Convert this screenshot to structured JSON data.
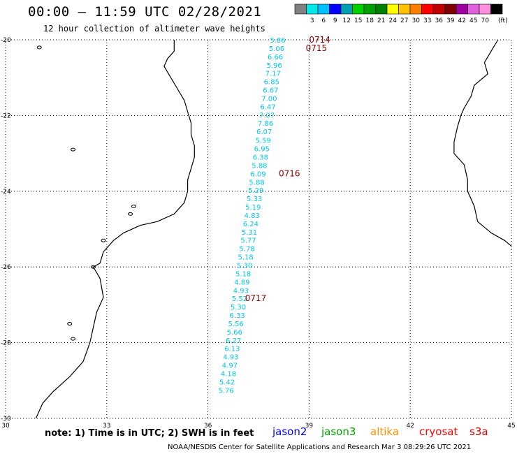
{
  "title": "00:00 – 11:59 UTC 02/28/2021",
  "subtitle": "12 hour collection of altimeter wave heights",
  "legend": {
    "unit": "(ft)",
    "swatches": [
      {
        "label": "",
        "color": "#808080"
      },
      {
        "label": "3",
        "color": "#00e8e8"
      },
      {
        "label": "6",
        "color": "#00c0ff"
      },
      {
        "label": "9",
        "color": "#0000ff"
      },
      {
        "label": "12",
        "color": "#00a0b0"
      },
      {
        "label": "15",
        "color": "#00d000"
      },
      {
        "label": "18",
        "color": "#00a000"
      },
      {
        "label": "21",
        "color": "#008000"
      },
      {
        "label": "24",
        "color": "#ffff00"
      },
      {
        "label": "27",
        "color": "#ffc000"
      },
      {
        "label": "30",
        "color": "#ff8000"
      },
      {
        "label": "33",
        "color": "#ff0000"
      },
      {
        "label": "36",
        "color": "#c00000"
      },
      {
        "label": "39",
        "color": "#800000"
      },
      {
        "label": "42",
        "color": "#a000a0"
      },
      {
        "label": "45",
        "color": "#e060e0"
      },
      {
        "label": "70",
        "color": "#ff90e0"
      },
      {
        "label": "",
        "color": "#000000"
      }
    ]
  },
  "map": {
    "lon_range": [
      30,
      45
    ],
    "lat_range": [
      -30,
      -20
    ],
    "lon_ticks": [
      "30",
      "33",
      "36",
      "39",
      "42",
      "45"
    ],
    "lat_ticks": [
      "-20",
      "-22",
      "-24",
      "-26",
      "-28",
      "-30"
    ],
    "grid": "dotted",
    "track_color": "#00c8e8",
    "time_label_color": "#8b0000"
  },
  "swh_track": [
    {
      "lat": -20.0,
      "lon": 38.3,
      "swh": "5.86"
    },
    {
      "lat": -20.22,
      "lon": 38.27,
      "swh": "5.06"
    },
    {
      "lat": -20.44,
      "lon": 38.23,
      "swh": "6.66"
    },
    {
      "lat": -20.66,
      "lon": 38.2,
      "swh": "5.96"
    },
    {
      "lat": -20.88,
      "lon": 38.16,
      "swh": "7.17"
    },
    {
      "lat": -21.1,
      "lon": 38.12,
      "swh": "6.85"
    },
    {
      "lat": -21.32,
      "lon": 38.09,
      "swh": "6.67"
    },
    {
      "lat": -21.54,
      "lon": 38.05,
      "swh": "7.00"
    },
    {
      "lat": -21.76,
      "lon": 38.01,
      "swh": "6.47"
    },
    {
      "lat": -21.98,
      "lon": 37.98,
      "swh": "7.07"
    },
    {
      "lat": -22.2,
      "lon": 37.94,
      "swh": "7.86"
    },
    {
      "lat": -22.42,
      "lon": 37.9,
      "swh": "6.07"
    },
    {
      "lat": -22.65,
      "lon": 37.87,
      "swh": "5.59"
    },
    {
      "lat": -22.87,
      "lon": 37.83,
      "swh": "6.95"
    },
    {
      "lat": -23.09,
      "lon": 37.79,
      "swh": "6.38"
    },
    {
      "lat": -23.31,
      "lon": 37.76,
      "swh": "5.88"
    },
    {
      "lat": -23.53,
      "lon": 37.72,
      "swh": "6.09"
    },
    {
      "lat": -23.75,
      "lon": 37.68,
      "swh": "5.88"
    },
    {
      "lat": -23.97,
      "lon": 37.65,
      "swh": "5.29"
    },
    {
      "lat": -24.19,
      "lon": 37.61,
      "swh": "5.33"
    },
    {
      "lat": -24.41,
      "lon": 37.57,
      "swh": "5.19"
    },
    {
      "lat": -24.63,
      "lon": 37.54,
      "swh": "4.83"
    },
    {
      "lat": -24.85,
      "lon": 37.5,
      "swh": "6.24"
    },
    {
      "lat": -25.07,
      "lon": 37.46,
      "swh": "5.31"
    },
    {
      "lat": -25.29,
      "lon": 37.43,
      "swh": "5.77"
    },
    {
      "lat": -25.51,
      "lon": 37.39,
      "swh": "5.78"
    },
    {
      "lat": -25.73,
      "lon": 37.35,
      "swh": "5.18"
    },
    {
      "lat": -25.95,
      "lon": 37.32,
      "swh": "5.30"
    },
    {
      "lat": -26.17,
      "lon": 37.28,
      "swh": "5.18"
    },
    {
      "lat": -26.39,
      "lon": 37.24,
      "swh": "4.89"
    },
    {
      "lat": -26.61,
      "lon": 37.21,
      "swh": "4.93"
    },
    {
      "lat": -26.83,
      "lon": 37.17,
      "swh": "5.52"
    },
    {
      "lat": -27.05,
      "lon": 37.13,
      "swh": "5.30"
    },
    {
      "lat": -27.27,
      "lon": 37.1,
      "swh": "6.33"
    },
    {
      "lat": -27.49,
      "lon": 37.06,
      "swh": "5.56"
    },
    {
      "lat": -27.71,
      "lon": 37.02,
      "swh": "5.66"
    },
    {
      "lat": -27.93,
      "lon": 36.99,
      "swh": "6.27"
    },
    {
      "lat": -28.15,
      "lon": 36.95,
      "swh": "6.13"
    },
    {
      "lat": -28.37,
      "lon": 36.91,
      "swh": "4.93"
    },
    {
      "lat": -28.59,
      "lon": 36.88,
      "swh": "4.97"
    },
    {
      "lat": -28.81,
      "lon": 36.84,
      "swh": "4.18"
    },
    {
      "lat": -29.03,
      "lon": 36.8,
      "swh": "5.42"
    },
    {
      "lat": -29.25,
      "lon": 36.77,
      "swh": "5.76"
    }
  ],
  "time_labels": [
    {
      "text": "0714",
      "lat": -20.0,
      "lon": 39.0
    },
    {
      "text": "0715",
      "lat": -20.22,
      "lon": 38.9
    },
    {
      "text": "0716",
      "lat": -23.53,
      "lon": 38.1
    },
    {
      "text": "0717",
      "lat": -26.83,
      "lon": 37.1
    }
  ],
  "footer": {
    "note": "note: 1) Time is in UTC; 2) SWH is in feet",
    "credit": "NOAA/NESDIS Center for Satellite Applications and Research   Mar  3 08:29:26 UTC 2021"
  },
  "satellites": [
    {
      "name": "jason2",
      "color": "#0000ff"
    },
    {
      "name": "jason3",
      "color": "#00a000"
    },
    {
      "name": "altika",
      "color": "#ff9000"
    },
    {
      "name": "cryosat",
      "color": "#ff0000"
    },
    {
      "name": "s3a",
      "color": "#d00000"
    }
  ]
}
